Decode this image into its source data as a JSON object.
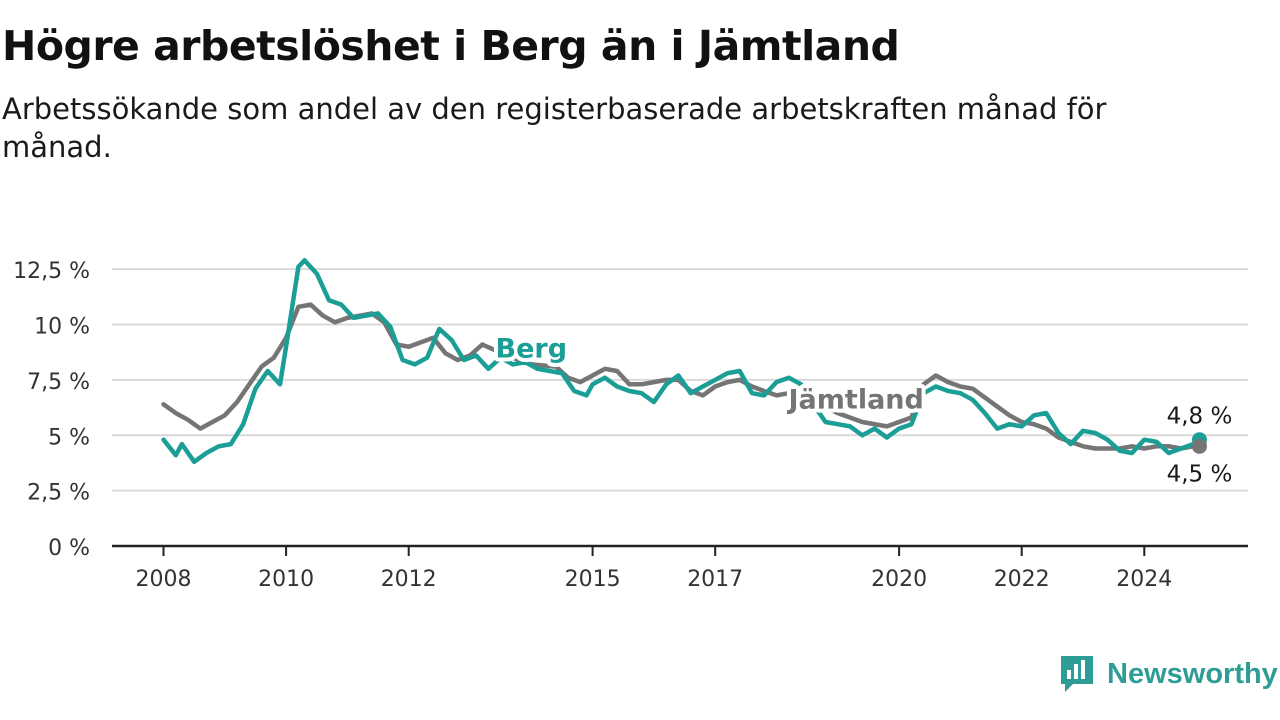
{
  "header": {
    "title": "Högre arbetslöshet i Berg än i Jämtland",
    "subtitle": "Arbetssökande som andel av den registerbaserade arbetskraften månad för månad."
  },
  "brand": {
    "name": "Newsworthy",
    "color": "#2e9d96",
    "icon": "newsworthy-chart-icon"
  },
  "chart_data": {
    "type": "line",
    "ylim": [
      0,
      13.5
    ],
    "xlim": [
      2007.3,
      2025.6
    ],
    "yticks": [
      {
        "value": 0,
        "label": "0 %"
      },
      {
        "value": 2.5,
        "label": "2,5 %"
      },
      {
        "value": 5,
        "label": "5 %"
      },
      {
        "value": 7.5,
        "label": "7,5 %"
      },
      {
        "value": 10,
        "label": "10 %"
      },
      {
        "value": 12.5,
        "label": "12,5 %"
      }
    ],
    "xticks": [
      {
        "value": 2008,
        "label": "2008"
      },
      {
        "value": 2010,
        "label": "2010"
      },
      {
        "value": 2012,
        "label": "2012"
      },
      {
        "value": 2015,
        "label": "2015"
      },
      {
        "value": 2017,
        "label": "2017"
      },
      {
        "value": 2020,
        "label": "2020"
      },
      {
        "value": 2022,
        "label": "2022"
      },
      {
        "value": 2024,
        "label": "2024"
      }
    ],
    "grid": true,
    "series": [
      {
        "name": "Jämtland",
        "color": "#757575",
        "points": [
          [
            2008.0,
            6.4
          ],
          [
            2008.2,
            6.0
          ],
          [
            2008.4,
            5.7
          ],
          [
            2008.6,
            5.3
          ],
          [
            2008.8,
            5.6
          ],
          [
            2009.0,
            5.9
          ],
          [
            2009.2,
            6.5
          ],
          [
            2009.4,
            7.3
          ],
          [
            2009.6,
            8.1
          ],
          [
            2009.8,
            8.5
          ],
          [
            2010.0,
            9.4
          ],
          [
            2010.2,
            10.8
          ],
          [
            2010.4,
            10.9
          ],
          [
            2010.6,
            10.4
          ],
          [
            2010.8,
            10.1
          ],
          [
            2011.0,
            10.3
          ],
          [
            2011.2,
            10.4
          ],
          [
            2011.4,
            10.5
          ],
          [
            2011.6,
            10.1
          ],
          [
            2011.8,
            9.1
          ],
          [
            2012.0,
            9.0
          ],
          [
            2012.2,
            9.2
          ],
          [
            2012.4,
            9.4
          ],
          [
            2012.6,
            8.7
          ],
          [
            2012.8,
            8.4
          ],
          [
            2013.0,
            8.6
          ],
          [
            2013.2,
            9.1
          ],
          [
            2013.6,
            8.6
          ],
          [
            2014.0,
            8.2
          ],
          [
            2014.4,
            8.1
          ],
          [
            2014.6,
            7.6
          ],
          [
            2014.8,
            7.4
          ],
          [
            2015.0,
            7.7
          ],
          [
            2015.2,
            8.0
          ],
          [
            2015.4,
            7.9
          ],
          [
            2015.6,
            7.3
          ],
          [
            2015.8,
            7.3
          ],
          [
            2016.0,
            7.4
          ],
          [
            2016.2,
            7.5
          ],
          [
            2016.4,
            7.5
          ],
          [
            2016.6,
            7.0
          ],
          [
            2016.8,
            6.8
          ],
          [
            2017.0,
            7.2
          ],
          [
            2017.2,
            7.4
          ],
          [
            2017.4,
            7.5
          ],
          [
            2017.6,
            7.2
          ],
          [
            2017.8,
            7.0
          ],
          [
            2018.0,
            6.8
          ],
          [
            2018.2,
            6.9
          ],
          [
            2018.4,
            7.0
          ],
          [
            2018.6,
            6.5
          ],
          [
            2019.0,
            6.0
          ],
          [
            2019.4,
            5.6
          ],
          [
            2019.8,
            5.4
          ],
          [
            2020.2,
            5.8
          ],
          [
            2020.4,
            7.3
          ],
          [
            2020.6,
            7.7
          ],
          [
            2020.8,
            7.4
          ],
          [
            2021.0,
            7.2
          ],
          [
            2021.2,
            7.1
          ],
          [
            2021.4,
            6.7
          ],
          [
            2021.6,
            6.3
          ],
          [
            2021.8,
            5.9
          ],
          [
            2022.0,
            5.6
          ],
          [
            2022.2,
            5.5
          ],
          [
            2022.4,
            5.3
          ],
          [
            2022.6,
            4.9
          ],
          [
            2022.8,
            4.7
          ],
          [
            2023.0,
            4.5
          ],
          [
            2023.2,
            4.4
          ],
          [
            2023.4,
            4.4
          ],
          [
            2023.6,
            4.4
          ],
          [
            2023.8,
            4.5
          ],
          [
            2024.0,
            4.4
          ],
          [
            2024.2,
            4.5
          ],
          [
            2024.4,
            4.5
          ],
          [
            2024.6,
            4.4
          ],
          [
            2024.8,
            4.5
          ],
          [
            2024.9,
            4.5
          ]
        ]
      },
      {
        "name": "Berg",
        "color": "#1a9e96",
        "points": [
          [
            2008.0,
            4.8
          ],
          [
            2008.2,
            4.1
          ],
          [
            2008.3,
            4.6
          ],
          [
            2008.5,
            3.8
          ],
          [
            2008.7,
            4.2
          ],
          [
            2008.9,
            4.5
          ],
          [
            2009.1,
            4.6
          ],
          [
            2009.3,
            5.5
          ],
          [
            2009.5,
            7.1
          ],
          [
            2009.7,
            7.9
          ],
          [
            2009.9,
            7.3
          ],
          [
            2010.0,
            9.0
          ],
          [
            2010.1,
            10.8
          ],
          [
            2010.2,
            12.6
          ],
          [
            2010.3,
            12.9
          ],
          [
            2010.5,
            12.3
          ],
          [
            2010.7,
            11.1
          ],
          [
            2010.9,
            10.9
          ],
          [
            2011.1,
            10.3
          ],
          [
            2011.3,
            10.4
          ],
          [
            2011.5,
            10.5
          ],
          [
            2011.7,
            9.9
          ],
          [
            2011.9,
            8.4
          ],
          [
            2012.1,
            8.2
          ],
          [
            2012.3,
            8.5
          ],
          [
            2012.5,
            9.8
          ],
          [
            2012.7,
            9.3
          ],
          [
            2012.9,
            8.4
          ],
          [
            2013.1,
            8.6
          ],
          [
            2013.3,
            8.0
          ],
          [
            2013.5,
            8.5
          ],
          [
            2013.7,
            8.2
          ],
          [
            2013.9,
            8.3
          ],
          [
            2014.1,
            8.0
          ],
          [
            2014.3,
            7.9
          ],
          [
            2014.5,
            7.8
          ],
          [
            2014.7,
            7.0
          ],
          [
            2014.9,
            6.8
          ],
          [
            2015.0,
            7.3
          ],
          [
            2015.2,
            7.6
          ],
          [
            2015.4,
            7.2
          ],
          [
            2015.6,
            7.0
          ],
          [
            2015.8,
            6.9
          ],
          [
            2016.0,
            6.5
          ],
          [
            2016.2,
            7.3
          ],
          [
            2016.4,
            7.7
          ],
          [
            2016.6,
            6.9
          ],
          [
            2016.8,
            7.2
          ],
          [
            2017.0,
            7.5
          ],
          [
            2017.2,
            7.8
          ],
          [
            2017.4,
            7.9
          ],
          [
            2017.6,
            6.9
          ],
          [
            2017.8,
            6.8
          ],
          [
            2018.0,
            7.4
          ],
          [
            2018.2,
            7.6
          ],
          [
            2018.4,
            7.3
          ],
          [
            2018.6,
            6.4
          ],
          [
            2018.8,
            5.6
          ],
          [
            2019.0,
            5.5
          ],
          [
            2019.2,
            5.4
          ],
          [
            2019.4,
            5.0
          ],
          [
            2019.6,
            5.3
          ],
          [
            2019.8,
            4.9
          ],
          [
            2020.0,
            5.3
          ],
          [
            2020.2,
            5.5
          ],
          [
            2020.4,
            6.9
          ],
          [
            2020.6,
            7.2
          ],
          [
            2020.8,
            7.0
          ],
          [
            2021.0,
            6.9
          ],
          [
            2021.2,
            6.6
          ],
          [
            2021.4,
            6.0
          ],
          [
            2021.6,
            5.3
          ],
          [
            2021.8,
            5.5
          ],
          [
            2022.0,
            5.4
          ],
          [
            2022.2,
            5.9
          ],
          [
            2022.4,
            6.0
          ],
          [
            2022.6,
            5.1
          ],
          [
            2022.8,
            4.6
          ],
          [
            2023.0,
            5.2
          ],
          [
            2023.2,
            5.1
          ],
          [
            2023.4,
            4.8
          ],
          [
            2023.6,
            4.3
          ],
          [
            2023.8,
            4.2
          ],
          [
            2024.0,
            4.8
          ],
          [
            2024.2,
            4.7
          ],
          [
            2024.4,
            4.2
          ],
          [
            2024.6,
            4.4
          ],
          [
            2024.8,
            4.6
          ],
          [
            2024.9,
            4.8
          ]
        ]
      }
    ],
    "end_labels": [
      {
        "series": "Berg",
        "label": "4,8 %"
      },
      {
        "series": "Jämtland",
        "label": "4,5 %"
      }
    ],
    "series_labels": [
      {
        "series": "Berg",
        "text": "Berg",
        "x": 2014.0,
        "y": 8.5
      },
      {
        "series": "Jämtland",
        "text": "Jämtland",
        "x": 2019.3,
        "y": 6.2
      }
    ]
  }
}
